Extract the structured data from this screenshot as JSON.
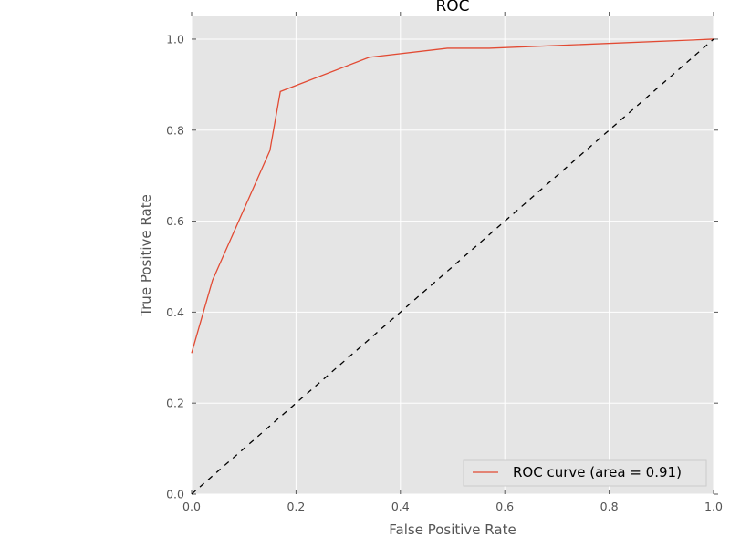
{
  "chart_data": {
    "type": "line",
    "title": "ROC",
    "xlabel": "False Positive Rate",
    "ylabel": "True Positive Rate",
    "xlim": [
      0.0,
      1.0
    ],
    "ylim": [
      0.0,
      1.05
    ],
    "xticks": [
      "0.0",
      "0.2",
      "0.4",
      "0.6",
      "0.8",
      "1.0"
    ],
    "yticks": [
      "0.0",
      "0.2",
      "0.4",
      "0.6",
      "0.8",
      "1.0"
    ],
    "grid": true,
    "legend_position": "lower-right",
    "series": [
      {
        "name": "ROC curve (area = 0.91)",
        "color": "#E24A33",
        "style": "solid",
        "x": [
          0.0,
          0.04,
          0.15,
          0.17,
          0.34,
          0.49,
          0.57,
          1.0
        ],
        "y": [
          0.31,
          0.47,
          0.755,
          0.885,
          0.96,
          0.98,
          0.98,
          1.0
        ]
      },
      {
        "color": "#000000",
        "style": "dashed",
        "x": [
          0.0,
          1.0
        ],
        "y": [
          0.0,
          1.0
        ]
      }
    ]
  }
}
